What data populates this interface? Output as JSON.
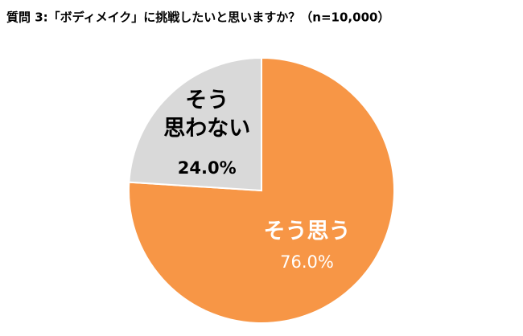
{
  "chart_data": {
    "type": "pie",
    "title": "質問 3:「ボディメイク」に挑戦したいと思いますか？（n=10,000）",
    "categories": [
      "そう思う",
      "そう\n思わない"
    ],
    "values": [
      76.0,
      24.0
    ],
    "value_labels": [
      "76.0%",
      "24.0%"
    ],
    "colors": [
      "#f79646",
      "#d9d9d9"
    ],
    "label_colors": [
      "#ffffff",
      "#000000"
    ]
  }
}
